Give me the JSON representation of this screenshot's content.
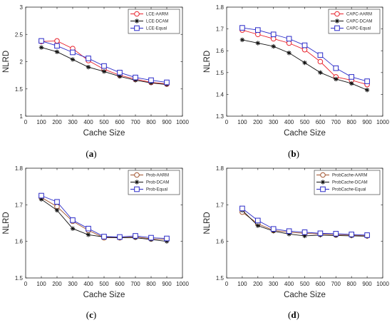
{
  "chart_data": [
    {
      "type": "line",
      "caption": "a",
      "x": [
        100,
        200,
        300,
        400,
        500,
        600,
        700,
        800,
        900
      ],
      "xlabel": "Cache Size",
      "ylabel": "NLRD",
      "xlim": [
        0,
        1000
      ],
      "ylim": [
        1,
        3
      ],
      "xticks": [
        "0",
        "100",
        "200",
        "300",
        "400",
        "500",
        "600",
        "700",
        "800",
        "900",
        "1000"
      ],
      "yticks": [
        "1",
        "1.5",
        "2",
        "2.5",
        "3"
      ],
      "legend_position": "top-right",
      "grid": false,
      "series": [
        {
          "name": "LCE-AARM",
          "marker": "circle",
          "color": "#e8202a",
          "values": [
            2.37,
            2.38,
            2.24,
            2.02,
            1.86,
            1.75,
            1.68,
            1.62,
            1.59
          ]
        },
        {
          "name": "LCE-DCAM",
          "marker": "star",
          "color": "#111111",
          "values": [
            2.26,
            2.18,
            2.04,
            1.9,
            1.82,
            1.73,
            1.66,
            1.61,
            1.58
          ]
        },
        {
          "name": "LCE-Equal",
          "marker": "square",
          "color": "#2a2ac8",
          "values": [
            2.38,
            2.29,
            2.17,
            2.06,
            1.92,
            1.8,
            1.71,
            1.66,
            1.62
          ]
        }
      ]
    },
    {
      "type": "line",
      "caption": "b",
      "x": [
        100,
        200,
        300,
        400,
        500,
        600,
        700,
        800,
        900
      ],
      "xlabel": "Cache Size",
      "ylabel": "NLRD",
      "xlim": [
        0,
        1000
      ],
      "ylim": [
        1.3,
        1.8
      ],
      "xticks": [
        "0",
        "100",
        "200",
        "300",
        "400",
        "500",
        "600",
        "700",
        "800",
        "900",
        "1000"
      ],
      "yticks": [
        "1.3",
        "1.4",
        "1.5",
        "1.6",
        "1.7",
        "1.8"
      ],
      "legend_position": "top-right",
      "grid": false,
      "series": [
        {
          "name": "CAPC-AARM",
          "marker": "circle",
          "color": "#e8202a",
          "values": [
            1.695,
            1.675,
            1.655,
            1.635,
            1.605,
            1.55,
            1.48,
            1.465,
            1.445
          ]
        },
        {
          "name": "CAPC-DCAM",
          "marker": "star",
          "color": "#111111",
          "values": [
            1.65,
            1.635,
            1.62,
            1.59,
            1.545,
            1.5,
            1.47,
            1.45,
            1.42
          ]
        },
        {
          "name": "CAPC-Equal",
          "marker": "square",
          "color": "#2a2ac8",
          "values": [
            1.705,
            1.695,
            1.675,
            1.655,
            1.625,
            1.58,
            1.52,
            1.48,
            1.46
          ]
        }
      ]
    },
    {
      "type": "line",
      "caption": "c",
      "x": [
        100,
        200,
        300,
        400,
        500,
        600,
        700,
        800,
        900
      ],
      "xlabel": "Cache Size",
      "ylabel": "NLRD",
      "xlim": [
        0,
        1000
      ],
      "ylim": [
        1.5,
        1.8
      ],
      "xticks": [
        "0",
        "100",
        "200",
        "300",
        "400",
        "500",
        "600",
        "700",
        "800",
        "900",
        "1000"
      ],
      "yticks": [
        "1.5",
        "1.6",
        "1.7",
        "1.8"
      ],
      "legend_position": "top-right",
      "grid": false,
      "series": [
        {
          "name": "Prob-AARM",
          "marker": "circle",
          "color": "#a0522d",
          "values": [
            1.72,
            1.695,
            1.655,
            1.63,
            1.61,
            1.61,
            1.612,
            1.607,
            1.605
          ]
        },
        {
          "name": "Prob-DCAM",
          "marker": "star",
          "color": "#111111",
          "values": [
            1.715,
            1.685,
            1.635,
            1.618,
            1.612,
            1.61,
            1.61,
            1.605,
            1.6
          ]
        },
        {
          "name": "Prob-Equal",
          "marker": "square",
          "color": "#2a2ac8",
          "values": [
            1.725,
            1.708,
            1.658,
            1.635,
            1.613,
            1.612,
            1.615,
            1.61,
            1.608
          ]
        }
      ]
    },
    {
      "type": "line",
      "caption": "d",
      "x": [
        100,
        200,
        300,
        400,
        500,
        600,
        700,
        800,
        900
      ],
      "xlabel": "Cache Size",
      "ylabel": "NLRD",
      "xlim": [
        0,
        1000
      ],
      "ylim": [
        1.5,
        1.8
      ],
      "xticks": [
        "0",
        "100",
        "200",
        "300",
        "400",
        "500",
        "600",
        "700",
        "800",
        "900",
        "1000"
      ],
      "yticks": [
        "1.5",
        "1.6",
        "1.7",
        "1.8"
      ],
      "legend_position": "top-right",
      "grid": false,
      "series": [
        {
          "name": "ProbCache-AARM",
          "marker": "circle",
          "color": "#a0522d",
          "values": [
            1.68,
            1.648,
            1.63,
            1.625,
            1.622,
            1.62,
            1.618,
            1.617,
            1.615
          ]
        },
        {
          "name": "ProbCache-DCAM",
          "marker": "star",
          "color": "#111111",
          "values": [
            1.685,
            1.643,
            1.628,
            1.62,
            1.615,
            1.617,
            1.616,
            1.615,
            1.614
          ]
        },
        {
          "name": "ProbCache-Equal",
          "marker": "square",
          "color": "#2a2ac8",
          "values": [
            1.69,
            1.657,
            1.634,
            1.628,
            1.625,
            1.622,
            1.621,
            1.619,
            1.617
          ]
        }
      ]
    }
  ]
}
